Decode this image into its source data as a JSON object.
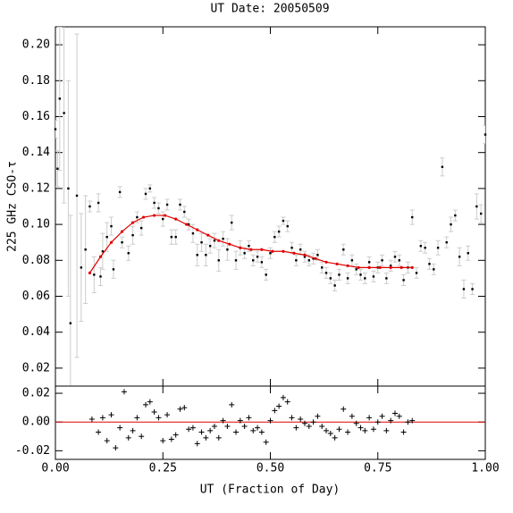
{
  "chart_data": [
    {
      "type": "scatter",
      "title": "UT Date: 20050509",
      "ylabel": "225 GHz CSO-τ",
      "xlim": [
        0,
        1
      ],
      "ylim": [
        0.01,
        0.21
      ],
      "yticks": [
        {
          "value": 0.02,
          "label": "0.02"
        },
        {
          "value": 0.04,
          "label": "0.04"
        },
        {
          "value": 0.06,
          "label": "0.06"
        },
        {
          "value": 0.08,
          "label": "0.08"
        },
        {
          "value": 0.1,
          "label": "0.10"
        },
        {
          "value": 0.12,
          "label": "0.12"
        },
        {
          "value": 0.14,
          "label": "0.14"
        },
        {
          "value": 0.16,
          "label": "0.16"
        },
        {
          "value": 0.18,
          "label": "0.18"
        },
        {
          "value": 0.2,
          "label": "0.20"
        }
      ],
      "series": [
        {
          "type": "scatter",
          "color": "#000000",
          "error_color": "#cccccc",
          "x": [
            0.0,
            0.005,
            0.01,
            0.02,
            0.03,
            0.035,
            0.05,
            0.06,
            0.07,
            0.08,
            0.09,
            0.1,
            0.105,
            0.11,
            0.12,
            0.13,
            0.135,
            0.15,
            0.155,
            0.17,
            0.18,
            0.19,
            0.2,
            0.21,
            0.22,
            0.23,
            0.24,
            0.25,
            0.26,
            0.27,
            0.28,
            0.29,
            0.3,
            0.31,
            0.32,
            0.33,
            0.34,
            0.35,
            0.36,
            0.37,
            0.38,
            0.39,
            0.4,
            0.41,
            0.42,
            0.43,
            0.44,
            0.45,
            0.46,
            0.47,
            0.48,
            0.49,
            0.5,
            0.51,
            0.52,
            0.53,
            0.54,
            0.55,
            0.56,
            0.57,
            0.58,
            0.59,
            0.6,
            0.61,
            0.62,
            0.63,
            0.64,
            0.65,
            0.66,
            0.67,
            0.68,
            0.69,
            0.7,
            0.71,
            0.72,
            0.73,
            0.74,
            0.75,
            0.76,
            0.77,
            0.78,
            0.79,
            0.8,
            0.81,
            0.82,
            0.83,
            0.84,
            0.85,
            0.86,
            0.87,
            0.88,
            0.89,
            0.9,
            0.91,
            0.92,
            0.93,
            0.94,
            0.95,
            0.96,
            0.97,
            0.98,
            0.99,
            1.0
          ],
          "values": [
            0.153,
            0.131,
            0.17,
            0.162,
            0.12,
            0.045,
            0.116,
            0.076,
            0.086,
            0.11,
            0.072,
            0.112,
            0.071,
            0.085,
            0.093,
            0.099,
            0.075,
            0.118,
            0.09,
            0.084,
            0.094,
            0.104,
            0.098,
            0.117,
            0.12,
            0.112,
            0.109,
            0.103,
            0.111,
            0.093,
            0.093,
            0.111,
            0.107,
            0.1,
            0.095,
            0.083,
            0.09,
            0.083,
            0.088,
            0.091,
            0.08,
            0.092,
            0.086,
            0.101,
            0.08,
            0.087,
            0.084,
            0.088,
            0.08,
            0.082,
            0.079,
            0.072,
            0.084,
            0.093,
            0.096,
            0.102,
            0.099,
            0.087,
            0.08,
            0.086,
            0.082,
            0.08,
            0.081,
            0.083,
            0.076,
            0.073,
            0.07,
            0.066,
            0.072,
            0.086,
            0.07,
            0.08,
            0.075,
            0.072,
            0.07,
            0.079,
            0.071,
            0.076,
            0.08,
            0.07,
            0.077,
            0.082,
            0.08,
            0.069,
            0.076,
            0.104,
            0.073,
            0.088,
            0.087,
            0.078,
            0.075,
            0.087,
            0.132,
            0.09,
            0.1,
            0.105,
            0.082,
            0.064,
            0.084,
            0.064,
            0.11,
            0.106,
            0.15
          ],
          "errors": [
            0.005,
            0.01,
            0.04,
            0.05,
            0.06,
            0.06,
            0.09,
            0.03,
            0.03,
            0.003,
            0.01,
            0.005,
            0.005,
            0.01,
            0.008,
            0.005,
            0.005,
            0.003,
            0.003,
            0.004,
            0.005,
            0.003,
            0.004,
            0.003,
            0.002,
            0.003,
            0.003,
            0.004,
            0.003,
            0.004,
            0.004,
            0.003,
            0.003,
            0.003,
            0.005,
            0.006,
            0.005,
            0.006,
            0.004,
            0.004,
            0.006,
            0.004,
            0.006,
            0.004,
            0.005,
            0.004,
            0.003,
            0.003,
            0.003,
            0.003,
            0.003,
            0.003,
            0.003,
            0.003,
            0.003,
            0.002,
            0.003,
            0.003,
            0.003,
            0.003,
            0.003,
            0.003,
            0.003,
            0.003,
            0.003,
            0.003,
            0.003,
            0.003,
            0.003,
            0.003,
            0.003,
            0.003,
            0.003,
            0.003,
            0.003,
            0.003,
            0.003,
            0.003,
            0.003,
            0.003,
            0.003,
            0.003,
            0.003,
            0.003,
            0.003,
            0.004,
            0.003,
            0.003,
            0.003,
            0.003,
            0.003,
            0.004,
            0.005,
            0.003,
            0.004,
            0.003,
            0.005,
            0.005,
            0.004,
            0.003,
            0.007,
            0.005,
            0.005
          ]
        },
        {
          "type": "line",
          "color": "#e00000",
          "x": [
            0.08,
            0.105,
            0.13,
            0.155,
            0.18,
            0.205,
            0.23,
            0.255,
            0.28,
            0.305,
            0.33,
            0.355,
            0.38,
            0.405,
            0.43,
            0.455,
            0.48,
            0.505,
            0.53,
            0.555,
            0.58,
            0.605,
            0.63,
            0.655,
            0.68,
            0.705,
            0.73,
            0.755,
            0.78,
            0.805,
            0.83
          ],
          "values": [
            0.073,
            0.082,
            0.09,
            0.096,
            0.101,
            0.104,
            0.105,
            0.105,
            0.103,
            0.1,
            0.097,
            0.094,
            0.091,
            0.089,
            0.087,
            0.086,
            0.086,
            0.085,
            0.085,
            0.084,
            0.083,
            0.081,
            0.079,
            0.078,
            0.077,
            0.076,
            0.076,
            0.076,
            0.076,
            0.076,
            0.076
          ]
        }
      ]
    },
    {
      "type": "scatter",
      "xlabel": "UT (Fraction of Day)",
      "marker": "plus",
      "zero_line_color": "#e00000",
      "xlim": [
        0,
        1
      ],
      "ylim": [
        -0.026,
        0.025
      ],
      "xticks": [
        {
          "value": 0,
          "label": "0.00"
        },
        {
          "value": 0.25,
          "label": "0.25"
        },
        {
          "value": 0.5,
          "label": "0.50"
        },
        {
          "value": 0.75,
          "label": "0.75"
        },
        {
          "value": 1,
          "label": "1.00"
        }
      ],
      "yticks": [
        {
          "value": -0.02,
          "label": "-0.02"
        },
        {
          "value": 0,
          "label": "0.00"
        },
        {
          "value": 0.02,
          "label": "0.02"
        }
      ],
      "series": [
        {
          "color": "#000000",
          "x": [
            0.085,
            0.1,
            0.11,
            0.12,
            0.13,
            0.14,
            0.15,
            0.16,
            0.17,
            0.18,
            0.19,
            0.2,
            0.21,
            0.22,
            0.23,
            0.24,
            0.25,
            0.26,
            0.27,
            0.28,
            0.29,
            0.3,
            0.31,
            0.32,
            0.33,
            0.34,
            0.35,
            0.36,
            0.37,
            0.38,
            0.39,
            0.4,
            0.41,
            0.42,
            0.43,
            0.44,
            0.45,
            0.46,
            0.47,
            0.48,
            0.49,
            0.5,
            0.51,
            0.52,
            0.53,
            0.54,
            0.55,
            0.56,
            0.57,
            0.58,
            0.59,
            0.6,
            0.61,
            0.62,
            0.63,
            0.64,
            0.65,
            0.66,
            0.67,
            0.68,
            0.69,
            0.7,
            0.71,
            0.72,
            0.73,
            0.74,
            0.75,
            0.76,
            0.77,
            0.78,
            0.79,
            0.8,
            0.81,
            0.82,
            0.83
          ],
          "values": [
            0.002,
            -0.007,
            0.003,
            -0.013,
            0.005,
            -0.018,
            -0.004,
            0.021,
            -0.011,
            -0.006,
            0.003,
            -0.01,
            0.012,
            0.014,
            0.007,
            0.003,
            -0.013,
            0.005,
            -0.012,
            -0.009,
            0.009,
            0.01,
            -0.005,
            -0.004,
            -0.015,
            -0.007,
            -0.011,
            -0.006,
            -0.003,
            -0.011,
            0.001,
            -0.003,
            0.012,
            -0.007,
            0.001,
            -0.003,
            0.003,
            -0.006,
            -0.004,
            -0.007,
            -0.014,
            0.001,
            0.008,
            0.011,
            0.017,
            0.014,
            0.003,
            -0.004,
            0.002,
            -0.001,
            -0.003,
            0.0,
            0.004,
            -0.003,
            -0.006,
            -0.008,
            -0.011,
            -0.005,
            0.009,
            -0.007,
            0.004,
            -0.001,
            -0.004,
            -0.006,
            0.003,
            -0.005,
            0.0,
            0.004,
            -0.006,
            0.001,
            0.006,
            0.004,
            -0.007,
            0.0,
            0.001
          ]
        }
      ]
    }
  ]
}
